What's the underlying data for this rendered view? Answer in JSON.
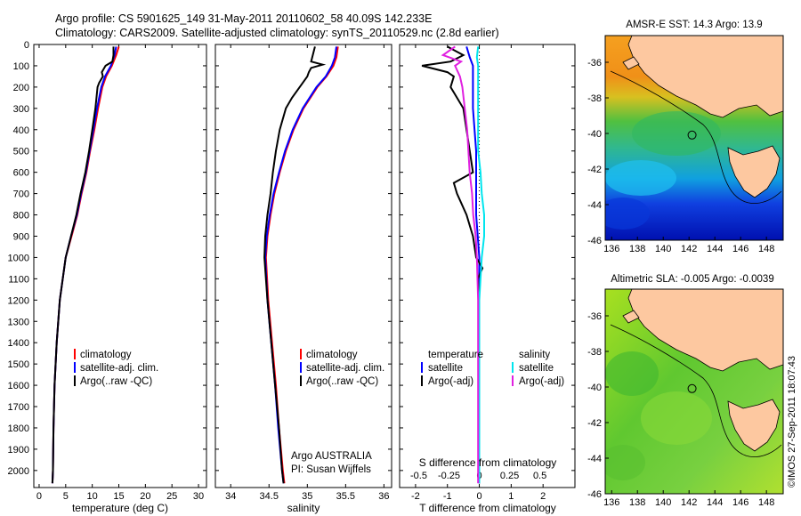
{
  "header": {
    "line1": "Argo profile: CS 5901625_149 31-May-2011 20110602_58 40.09S 142.233E",
    "line2": "Climatology: CARS2009. Satellite-adjusted climatology: synTS_20110529.nc (2.8d earlier)"
  },
  "colors": {
    "climatology": "#ff0000",
    "satellite": "#0000ff",
    "argo": "#000000",
    "sal_satellite": "#00e5ee",
    "sal_argo": "#e020e0"
  },
  "depth_axis": {
    "range": [
      0,
      2080
    ],
    "ticks": [
      0,
      100,
      200,
      300,
      400,
      500,
      600,
      700,
      800,
      900,
      1000,
      1100,
      1200,
      1300,
      1400,
      1500,
      1600,
      1700,
      1800,
      1900,
      2000
    ],
    "tick_labels": [
      "0",
      "100",
      "200",
      "300",
      "400",
      "500",
      "600",
      "700",
      "800",
      "900",
      "1000",
      "1100",
      "1200",
      "1300",
      "1400",
      "1500",
      "1600",
      "1700",
      "1800",
      "1900",
      "2000"
    ]
  },
  "chart_data": [
    {
      "type": "line",
      "id": "temperature",
      "xlabel": "temperature (deg C)",
      "xlim": [
        -1,
        31.5
      ],
      "xticks": [
        0,
        5,
        10,
        15,
        20,
        25,
        30
      ],
      "xtick_labels": [
        "0",
        "5",
        "10",
        "15",
        "20",
        "25",
        "30"
      ],
      "legend": [
        "climatology",
        "satellite-adj. clim.",
        "Argo(..raw -QC)"
      ],
      "series": [
        {
          "name": "climatology",
          "color_key": "climatology",
          "depth": [
            10,
            50,
            100,
            150,
            200,
            300,
            400,
            500,
            600,
            700,
            800,
            900,
            1000,
            1200,
            1400,
            1600,
            1800,
            2000,
            2060
          ],
          "values": [
            15.0,
            14.5,
            13.7,
            12.6,
            11.9,
            11.1,
            10.4,
            9.6,
            8.9,
            8.0,
            7.2,
            6.1,
            5.0,
            3.9,
            3.3,
            2.9,
            2.7,
            2.6,
            2.5
          ]
        },
        {
          "name": "satellite-adj. clim.",
          "color_key": "satellite",
          "depth": [
            10,
            50,
            100,
            150,
            200,
            300,
            400,
            500,
            600,
            700,
            800,
            900,
            1000,
            1200,
            1400,
            1600,
            1800,
            2000,
            2060
          ],
          "values": [
            14.5,
            14.2,
            13.5,
            12.4,
            11.7,
            10.9,
            10.2,
            9.5,
            8.8,
            7.9,
            7.1,
            6.0,
            5.0,
            3.9,
            3.3,
            2.9,
            2.7,
            2.6,
            2.5
          ]
        },
        {
          "name": "Argo(..raw -QC)",
          "color_key": "argo",
          "depth": [
            10,
            50,
            80,
            100,
            130,
            150,
            180,
            200,
            250,
            300,
            400,
            500,
            600,
            700,
            800,
            900,
            1000,
            1200,
            1400,
            1600,
            1800,
            2000,
            2060
          ],
          "values": [
            14.0,
            14.0,
            13.8,
            12.5,
            11.8,
            12.0,
            11.3,
            11.0,
            10.8,
            10.6,
            10.0,
            9.4,
            8.7,
            7.8,
            7.0,
            6.0,
            5.0,
            3.9,
            3.3,
            2.9,
            2.7,
            2.6,
            2.5
          ]
        }
      ]
    },
    {
      "type": "line",
      "id": "salinity",
      "xlabel": "salinity",
      "xlim": [
        33.8,
        36.1
      ],
      "xticks": [
        34,
        34.5,
        35,
        35.5,
        36
      ],
      "xtick_labels": [
        "34",
        "34.5",
        "35",
        "35.5",
        "36"
      ],
      "legend": [
        "climatology",
        "satellite-adj. clim.",
        "Argo(..raw -QC)"
      ],
      "annotation": [
        "Argo AUSTRALIA",
        "PI: Susan Wijffels"
      ],
      "series": [
        {
          "name": "climatology",
          "color_key": "climatology",
          "depth": [
            10,
            60,
            100,
            150,
            200,
            300,
            400,
            500,
            600,
            700,
            800,
            900,
            1000,
            1200,
            1400,
            1600,
            1800,
            2000,
            2060
          ],
          "values": [
            35.4,
            35.38,
            35.34,
            35.25,
            35.13,
            34.95,
            34.82,
            34.72,
            34.64,
            34.57,
            34.52,
            34.48,
            34.46,
            34.49,
            34.54,
            34.59,
            34.63,
            34.68,
            34.7
          ]
        },
        {
          "name": "satellite-adj. clim.",
          "color_key": "satellite",
          "depth": [
            10,
            60,
            100,
            150,
            200,
            300,
            400,
            500,
            600,
            700,
            800,
            900,
            1000,
            1200,
            1400,
            1600,
            1800,
            2000,
            2060
          ],
          "values": [
            35.38,
            35.36,
            35.32,
            35.24,
            35.12,
            34.94,
            34.81,
            34.71,
            34.63,
            34.56,
            34.51,
            34.47,
            34.45,
            34.48,
            34.53,
            34.58,
            34.62,
            34.67,
            34.69
          ]
        },
        {
          "name": "Argo(..raw -QC)",
          "color_key": "argo",
          "depth": [
            10,
            80,
            95,
            110,
            130,
            150,
            200,
            250,
            300,
            400,
            500,
            600,
            700,
            800,
            900,
            1000,
            1200,
            1400,
            1600,
            1800,
            2000,
            2060
          ],
          "values": [
            35.1,
            35.05,
            35.2,
            35.05,
            35.02,
            35.0,
            34.9,
            34.8,
            34.72,
            34.64,
            34.59,
            34.55,
            34.52,
            34.48,
            34.45,
            34.44,
            34.48,
            34.53,
            34.58,
            34.63,
            34.67,
            34.69
          ]
        }
      ]
    },
    {
      "type": "line",
      "id": "differences",
      "xlabel": "T difference from climatology",
      "xlim": [
        -2.5,
        3.0
      ],
      "xticks": [
        -2,
        -1,
        0,
        1,
        2
      ],
      "xtick_labels": [
        "-2",
        "-1",
        "0",
        "1",
        "2"
      ],
      "top_label": "S difference from climatology",
      "top_ticks": [
        -0.5,
        -0.25,
        0,
        0.25,
        0.5
      ],
      "top_tick_labels": [
        "-0.5",
        "-0.25",
        "0",
        "0.25",
        "0.5"
      ],
      "legend_left_title": "temperature",
      "legend_right_title": "salinity",
      "legend_left": [
        "satellite",
        "Argo(-adj)"
      ],
      "legend_right": [
        "satellite",
        "Argo(-adj)"
      ],
      "series": [
        {
          "name": "T satellite",
          "color_key": "satellite",
          "depth": [
            10,
            60,
            100,
            150,
            200,
            300,
            400,
            500,
            600,
            700,
            800,
            900,
            1000,
            1200,
            1600,
            2000,
            2060
          ],
          "values": [
            -0.4,
            -0.3,
            -0.2,
            -0.2,
            -0.2,
            -0.2,
            -0.15,
            -0.1,
            -0.1,
            -0.1,
            -0.1,
            -0.05,
            0,
            0,
            0,
            0,
            0
          ]
        },
        {
          "name": "T Argo",
          "color_key": "argo",
          "depth": [
            10,
            50,
            80,
            100,
            130,
            150,
            200,
            250,
            300,
            400,
            500,
            600,
            650,
            700,
            800,
            900,
            1000,
            1050,
            1100,
            1200,
            1400,
            1600,
            2000,
            2060
          ],
          "values": [
            -1.0,
            -0.5,
            -0.9,
            -1.8,
            -1.0,
            -0.8,
            -0.9,
            -0.7,
            -0.5,
            -0.4,
            -0.3,
            -0.2,
            -0.8,
            -0.7,
            -0.4,
            -0.2,
            -0.1,
            0.1,
            -0.05,
            0,
            0,
            0,
            0,
            0
          ]
        },
        {
          "name": "S satellite",
          "color_key": "sal_satellite",
          "depth": [
            10,
            60,
            100,
            150,
            200,
            300,
            400,
            500,
            600,
            700,
            800,
            900,
            1000,
            1200,
            1600,
            2000,
            2060
          ],
          "values": [
            -0.01,
            -0.02,
            -0.01,
            -0.01,
            -0.01,
            -0.01,
            -0.01,
            -0.01,
            0.01,
            0.02,
            0.04,
            0.04,
            0.02,
            0,
            0,
            0,
            0
          ]
        },
        {
          "name": "S Argo",
          "color_key": "sal_argo",
          "depth": [
            10,
            50,
            80,
            100,
            150,
            200,
            300,
            400,
            500,
            600,
            700,
            800,
            900,
            1000,
            1200,
            1600,
            2000,
            2060
          ],
          "values": [
            -0.2,
            -0.3,
            -0.15,
            -0.2,
            -0.16,
            -0.14,
            -0.12,
            -0.1,
            -0.09,
            -0.08,
            -0.06,
            -0.05,
            -0.03,
            -0.02,
            -0.01,
            -0.01,
            -0.01,
            -0.01
          ]
        }
      ]
    },
    {
      "type": "heatmap",
      "id": "sst_map",
      "title": "AMSR-E SST: 14.3 Argo: 13.9",
      "xticks": [
        136,
        138,
        140,
        142,
        144,
        146,
        148
      ],
      "xtick_labels": [
        "136",
        "138",
        "140",
        "142",
        "144",
        "146",
        "148"
      ],
      "yticks": [
        -36,
        -38,
        -40,
        -42,
        -44,
        -46
      ],
      "ytick_labels": [
        "-36",
        "-38",
        "-40",
        "-42",
        "-44",
        "-46"
      ],
      "xlim": [
        135.5,
        149.3
      ],
      "ylim": [
        -46,
        -34.5
      ],
      "marker": {
        "lon": 142.233,
        "lat": -40.09
      }
    },
    {
      "type": "heatmap",
      "id": "sla_map",
      "title": "Altimetric SLA: -0.005 Argo: -0.0039",
      "xticks": [
        136,
        138,
        140,
        142,
        144,
        146,
        148
      ],
      "xtick_labels": [
        "136",
        "138",
        "140",
        "142",
        "144",
        "146",
        "148"
      ],
      "yticks": [
        -36,
        -38,
        -40,
        -42,
        -44,
        -46
      ],
      "ytick_labels": [
        "-36",
        "-38",
        "-40",
        "-42",
        "-44",
        "-46"
      ],
      "xlim": [
        135.5,
        149.3
      ],
      "ylim": [
        -46,
        -34.5
      ],
      "marker": {
        "lon": 142.233,
        "lat": -40.09
      }
    }
  ],
  "credit": "©IMOS 27-Sep-2011 18:07:43"
}
